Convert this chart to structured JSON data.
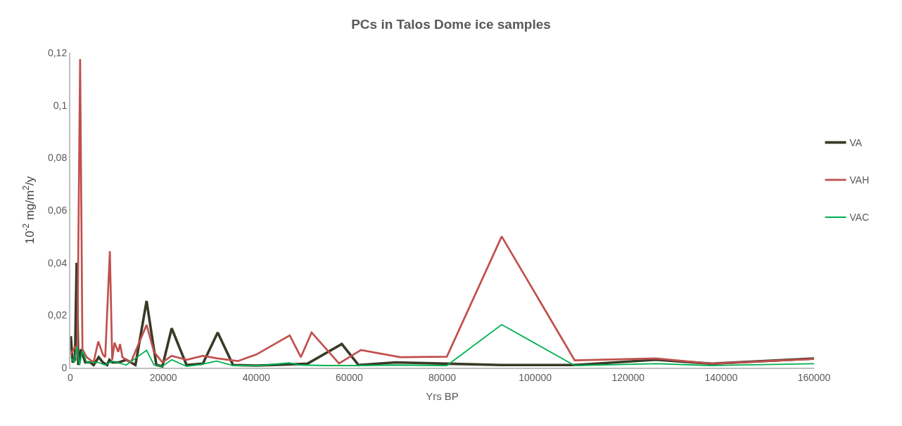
{
  "chart_data": {
    "type": "line",
    "title": "PCs in Talos Dome ice samples",
    "xlabel": "Yrs BP",
    "ylabel": "10$^{-2}$ mg/m$^{2}$/y",
    "xlim": [
      0,
      160000
    ],
    "xticks": [
      0,
      20000,
      40000,
      60000,
      80000,
      100000,
      120000,
      140000,
      160000
    ],
    "ylim": [
      0,
      0.12
    ],
    "yticks": [
      0,
      {
        "value": 0.02,
        "label": "0,02"
      },
      {
        "value": 0.04,
        "label": "0,04"
      },
      {
        "value": 0.06,
        "label": "0,06"
      },
      {
        "value": 0.08,
        "label": "0,08"
      },
      {
        "value": 0.1,
        "label": "0,1"
      },
      {
        "value": 0.12,
        "label": "0,12"
      }
    ],
    "grid": false,
    "legend": "right",
    "marker": "none",
    "line_style": "solid",
    "series": [
      {
        "name": "VA",
        "color": "#3a3a28",
        "x": [
          100,
          500,
          1000,
          1350,
          1700,
          2300,
          3200,
          4300,
          5000,
          6100,
          7000,
          7900,
          8400,
          9000,
          10500,
          12000,
          14000,
          16400,
          18500,
          19800,
          21800,
          25000,
          28500,
          31700,
          35000,
          40000,
          47000,
          51000,
          58400,
          62000,
          70000,
          81000,
          92800,
          108500,
          126000,
          138000,
          160000
        ],
        "values": [
          0.012,
          0.002,
          0.003,
          0.04,
          0.001,
          0.007,
          0.002,
          0.002,
          0.001,
          0.004,
          0.002,
          0.001,
          0.003,
          0.002,
          0.002,
          0.003,
          0.001,
          0.0254,
          0.001,
          0.0005,
          0.015,
          0.001,
          0.0015,
          0.0134,
          0.001,
          0.0008,
          0.0012,
          0.0015,
          0.009,
          0.001,
          0.002,
          0.0015,
          0.001,
          0.001,
          0.003,
          0.0015,
          0.0035
        ]
      },
      {
        "name": "VAH",
        "color": "#c0504d",
        "x": [
          100,
          1000,
          1500,
          2100,
          2600,
          3500,
          5000,
          6000,
          7000,
          7500,
          8500,
          9000,
          9500,
          10300,
          10700,
          11200,
          13000,
          16400,
          18000,
          19800,
          21800,
          25000,
          28500,
          31700,
          36000,
          40000,
          47200,
          49600,
          51900,
          57800,
          62500,
          71000,
          81000,
          92800,
          108500,
          126000,
          138000,
          160000
        ],
        "values": [
          0.005,
          0.008,
          0.006,
          0.1176,
          0.007,
          0.004,
          0.002,
          0.01,
          0.005,
          0.004,
          0.0444,
          0.003,
          0.0095,
          0.006,
          0.009,
          0.004,
          0.002,
          0.0163,
          0.006,
          0.002,
          0.0045,
          0.003,
          0.0045,
          0.0035,
          0.0025,
          0.005,
          0.0123,
          0.004,
          0.0134,
          0.0016,
          0.0067,
          0.004,
          0.0042,
          0.05,
          0.0028,
          0.0035,
          0.0015,
          0.0033
        ]
      },
      {
        "name": "VAC",
        "color": "#00b050",
        "x": [
          100,
          800,
          1400,
          2000,
          2600,
          3500,
          6000,
          7500,
          9000,
          12000,
          16400,
          18000,
          19800,
          21800,
          25000,
          28000,
          31500,
          35000,
          41000,
          47000,
          49500,
          55000,
          62000,
          70000,
          81000,
          92800,
          108500,
          126000,
          138000,
          160000
        ],
        "values": [
          0.004,
          0.002,
          0.008,
          0.001,
          0.0065,
          0.002,
          0.002,
          0.001,
          0.0025,
          0.001,
          0.0066,
          0.001,
          0.0005,
          0.003,
          0.0005,
          0.0012,
          0.0025,
          0.0008,
          0.0008,
          0.0018,
          0.001,
          0.0008,
          0.0008,
          0.001,
          0.0008,
          0.0164,
          0.0008,
          0.0015,
          0.0008,
          0.0015
        ]
      }
    ]
  }
}
